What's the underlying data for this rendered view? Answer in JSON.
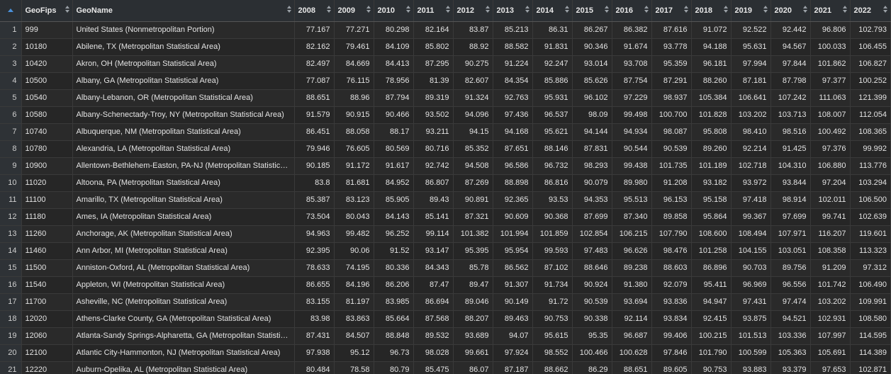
{
  "columns": [
    {
      "key": "GeoFips",
      "label": "GeoFips",
      "align": "left"
    },
    {
      "key": "GeoName",
      "label": "GeoName",
      "align": "left"
    },
    {
      "key": "y2008",
      "label": "2008",
      "align": "right"
    },
    {
      "key": "y2009",
      "label": "2009",
      "align": "right"
    },
    {
      "key": "y2010",
      "label": "2010",
      "align": "right"
    },
    {
      "key": "y2011",
      "label": "2011",
      "align": "right"
    },
    {
      "key": "y2012",
      "label": "2012",
      "align": "right"
    },
    {
      "key": "y2013",
      "label": "2013",
      "align": "right"
    },
    {
      "key": "y2014",
      "label": "2014",
      "align": "right"
    },
    {
      "key": "y2015",
      "label": "2015",
      "align": "right"
    },
    {
      "key": "y2016",
      "label": "2016",
      "align": "right"
    },
    {
      "key": "y2017",
      "label": "2017",
      "align": "right"
    },
    {
      "key": "y2018",
      "label": "2018",
      "align": "right"
    },
    {
      "key": "y2019",
      "label": "2019",
      "align": "right"
    },
    {
      "key": "y2020",
      "label": "2020",
      "align": "right"
    },
    {
      "key": "y2021",
      "label": "2021",
      "align": "right"
    },
    {
      "key": "y2022",
      "label": "2022",
      "align": "right"
    }
  ],
  "rows": [
    {
      "n": "1",
      "cells": [
        "999",
        "United States (Nonmetropolitan Portion)",
        "77.167",
        "77.271",
        "80.298",
        "82.164",
        "83.87",
        "85.213",
        "86.31",
        "86.267",
        "86.382",
        "87.616",
        "91.072",
        "92.522",
        "92.442",
        "96.806",
        "102.793"
      ]
    },
    {
      "n": "2",
      "cells": [
        "10180",
        "Abilene, TX (Metropolitan Statistical Area)",
        "82.162",
        "79.461",
        "84.109",
        "85.802",
        "88.92",
        "88.582",
        "91.831",
        "90.346",
        "91.674",
        "93.778",
        "94.188",
        "95.631",
        "94.567",
        "100.033",
        "106.455"
      ]
    },
    {
      "n": "3",
      "cells": [
        "10420",
        "Akron, OH (Metropolitan Statistical Area)",
        "82.497",
        "84.669",
        "84.413",
        "87.295",
        "90.275",
        "91.224",
        "92.247",
        "93.014",
        "93.708",
        "95.359",
        "96.181",
        "97.994",
        "97.844",
        "101.862",
        "106.827"
      ]
    },
    {
      "n": "4",
      "cells": [
        "10500",
        "Albany, GA (Metropolitan Statistical Area)",
        "77.087",
        "76.115",
        "78.956",
        "81.39",
        "82.607",
        "84.354",
        "85.886",
        "85.626",
        "87.754",
        "87.291",
        "88.260",
        "87.181",
        "87.798",
        "97.377",
        "100.252"
      ]
    },
    {
      "n": "5",
      "cells": [
        "10540",
        "Albany-Lebanon, OR (Metropolitan Statistical Area)",
        "88.651",
        "88.96",
        "87.794",
        "89.319",
        "91.324",
        "92.763",
        "95.931",
        "96.102",
        "97.229",
        "98.937",
        "105.384",
        "106.641",
        "107.242",
        "111.063",
        "121.399"
      ]
    },
    {
      "n": "6",
      "cells": [
        "10580",
        "Albany-Schenectady-Troy, NY (Metropolitan Statistical Area)",
        "91.579",
        "90.915",
        "90.466",
        "93.502",
        "94.096",
        "97.436",
        "96.537",
        "98.09",
        "99.498",
        "100.700",
        "101.828",
        "103.202",
        "103.713",
        "108.007",
        "112.054"
      ]
    },
    {
      "n": "7",
      "cells": [
        "10740",
        "Albuquerque, NM (Metropolitan Statistical Area)",
        "86.451",
        "88.058",
        "88.17",
        "93.211",
        "94.15",
        "94.168",
        "95.621",
        "94.144",
        "94.934",
        "98.087",
        "95.808",
        "98.410",
        "98.516",
        "100.492",
        "108.365"
      ]
    },
    {
      "n": "8",
      "cells": [
        "10780",
        "Alexandria, LA (Metropolitan Statistical Area)",
        "79.946",
        "76.605",
        "80.569",
        "80.716",
        "85.352",
        "87.651",
        "88.146",
        "87.831",
        "90.544",
        "90.539",
        "89.260",
        "92.214",
        "91.425",
        "97.376",
        "99.992"
      ]
    },
    {
      "n": "9",
      "cells": [
        "10900",
        "Allentown-Bethlehem-Easton, PA-NJ (Metropolitan Statistical Area)",
        "90.185",
        "91.172",
        "91.617",
        "92.742",
        "94.508",
        "96.586",
        "96.732",
        "98.293",
        "99.438",
        "101.735",
        "101.189",
        "102.718",
        "104.310",
        "106.880",
        "113.776"
      ]
    },
    {
      "n": "10",
      "cells": [
        "11020",
        "Altoona, PA (Metropolitan Statistical Area)",
        "83.8",
        "81.681",
        "84.952",
        "86.807",
        "87.269",
        "88.898",
        "86.816",
        "90.079",
        "89.980",
        "91.208",
        "93.182",
        "93.972",
        "93.844",
        "97.204",
        "103.294"
      ]
    },
    {
      "n": "11",
      "cells": [
        "11100",
        "Amarillo, TX (Metropolitan Statistical Area)",
        "85.387",
        "83.123",
        "85.905",
        "89.43",
        "90.891",
        "92.365",
        "93.53",
        "94.353",
        "95.513",
        "96.153",
        "95.158",
        "97.418",
        "98.914",
        "102.011",
        "106.500"
      ]
    },
    {
      "n": "12",
      "cells": [
        "11180",
        "Ames, IA (Metropolitan Statistical Area)",
        "73.504",
        "80.043",
        "84.143",
        "85.141",
        "87.321",
        "90.609",
        "90.368",
        "87.699",
        "87.340",
        "89.858",
        "95.864",
        "99.367",
        "97.699",
        "99.741",
        "102.639"
      ]
    },
    {
      "n": "13",
      "cells": [
        "11260",
        "Anchorage, AK (Metropolitan Statistical Area)",
        "94.963",
        "99.482",
        "96.252",
        "99.114",
        "101.382",
        "101.994",
        "101.859",
        "102.854",
        "106.215",
        "107.790",
        "108.600",
        "108.494",
        "107.971",
        "116.207",
        "119.601"
      ]
    },
    {
      "n": "14",
      "cells": [
        "11460",
        "Ann Arbor, MI (Metropolitan Statistical Area)",
        "92.395",
        "90.06",
        "91.52",
        "93.147",
        "95.395",
        "95.954",
        "99.593",
        "97.483",
        "96.626",
        "98.476",
        "101.258",
        "104.155",
        "103.051",
        "108.358",
        "113.323"
      ]
    },
    {
      "n": "15",
      "cells": [
        "11500",
        "Anniston-Oxford, AL (Metropolitan Statistical Area)",
        "78.633",
        "74.195",
        "80.336",
        "84.343",
        "85.78",
        "86.562",
        "87.102",
        "88.646",
        "89.238",
        "88.603",
        "86.896",
        "90.703",
        "89.756",
        "91.209",
        "97.312"
      ]
    },
    {
      "n": "16",
      "cells": [
        "11540",
        "Appleton, WI (Metropolitan Statistical Area)",
        "86.655",
        "84.196",
        "86.206",
        "87.47",
        "89.47",
        "91.307",
        "91.734",
        "90.924",
        "91.380",
        "92.079",
        "95.411",
        "96.969",
        "96.556",
        "101.742",
        "106.490"
      ]
    },
    {
      "n": "17",
      "cells": [
        "11700",
        "Asheville, NC (Metropolitan Statistical Area)",
        "83.155",
        "81.197",
        "83.985",
        "86.694",
        "89.046",
        "90.149",
        "91.72",
        "90.539",
        "93.694",
        "93.836",
        "94.947",
        "97.431",
        "97.474",
        "103.202",
        "109.991"
      ]
    },
    {
      "n": "18",
      "cells": [
        "12020",
        "Athens-Clarke County, GA (Metropolitan Statistical Area)",
        "83.98",
        "83.863",
        "85.664",
        "87.568",
        "88.207",
        "89.463",
        "90.753",
        "90.338",
        "92.114",
        "93.834",
        "92.415",
        "93.875",
        "94.521",
        "102.931",
        "108.580"
      ]
    },
    {
      "n": "19",
      "cells": [
        "12060",
        "Atlanta-Sandy Springs-Alpharetta, GA (Metropolitan Statistical Area)",
        "87.431",
        "84.507",
        "88.848",
        "89.532",
        "93.689",
        "94.07",
        "95.615",
        "95.35",
        "96.687",
        "99.406",
        "100.215",
        "101.513",
        "103.336",
        "107.997",
        "114.595"
      ]
    },
    {
      "n": "20",
      "cells": [
        "12100",
        "Atlantic City-Hammonton, NJ (Metropolitan Statistical Area)",
        "97.938",
        "95.12",
        "96.73",
        "98.028",
        "99.661",
        "97.924",
        "98.552",
        "100.466",
        "100.628",
        "97.846",
        "101.790",
        "100.599",
        "105.363",
        "105.691",
        "114.389"
      ]
    },
    {
      "n": "21",
      "cells": [
        "12220",
        "Auburn-Opelika, AL (Metropolitan Statistical Area)",
        "80.484",
        "78.58",
        "80.79",
        "85.475",
        "86.07",
        "87.187",
        "88.662",
        "86.29",
        "88.651",
        "89.605",
        "90.753",
        "93.883",
        "93.379",
        "97.653",
        "102.871"
      ]
    }
  ]
}
